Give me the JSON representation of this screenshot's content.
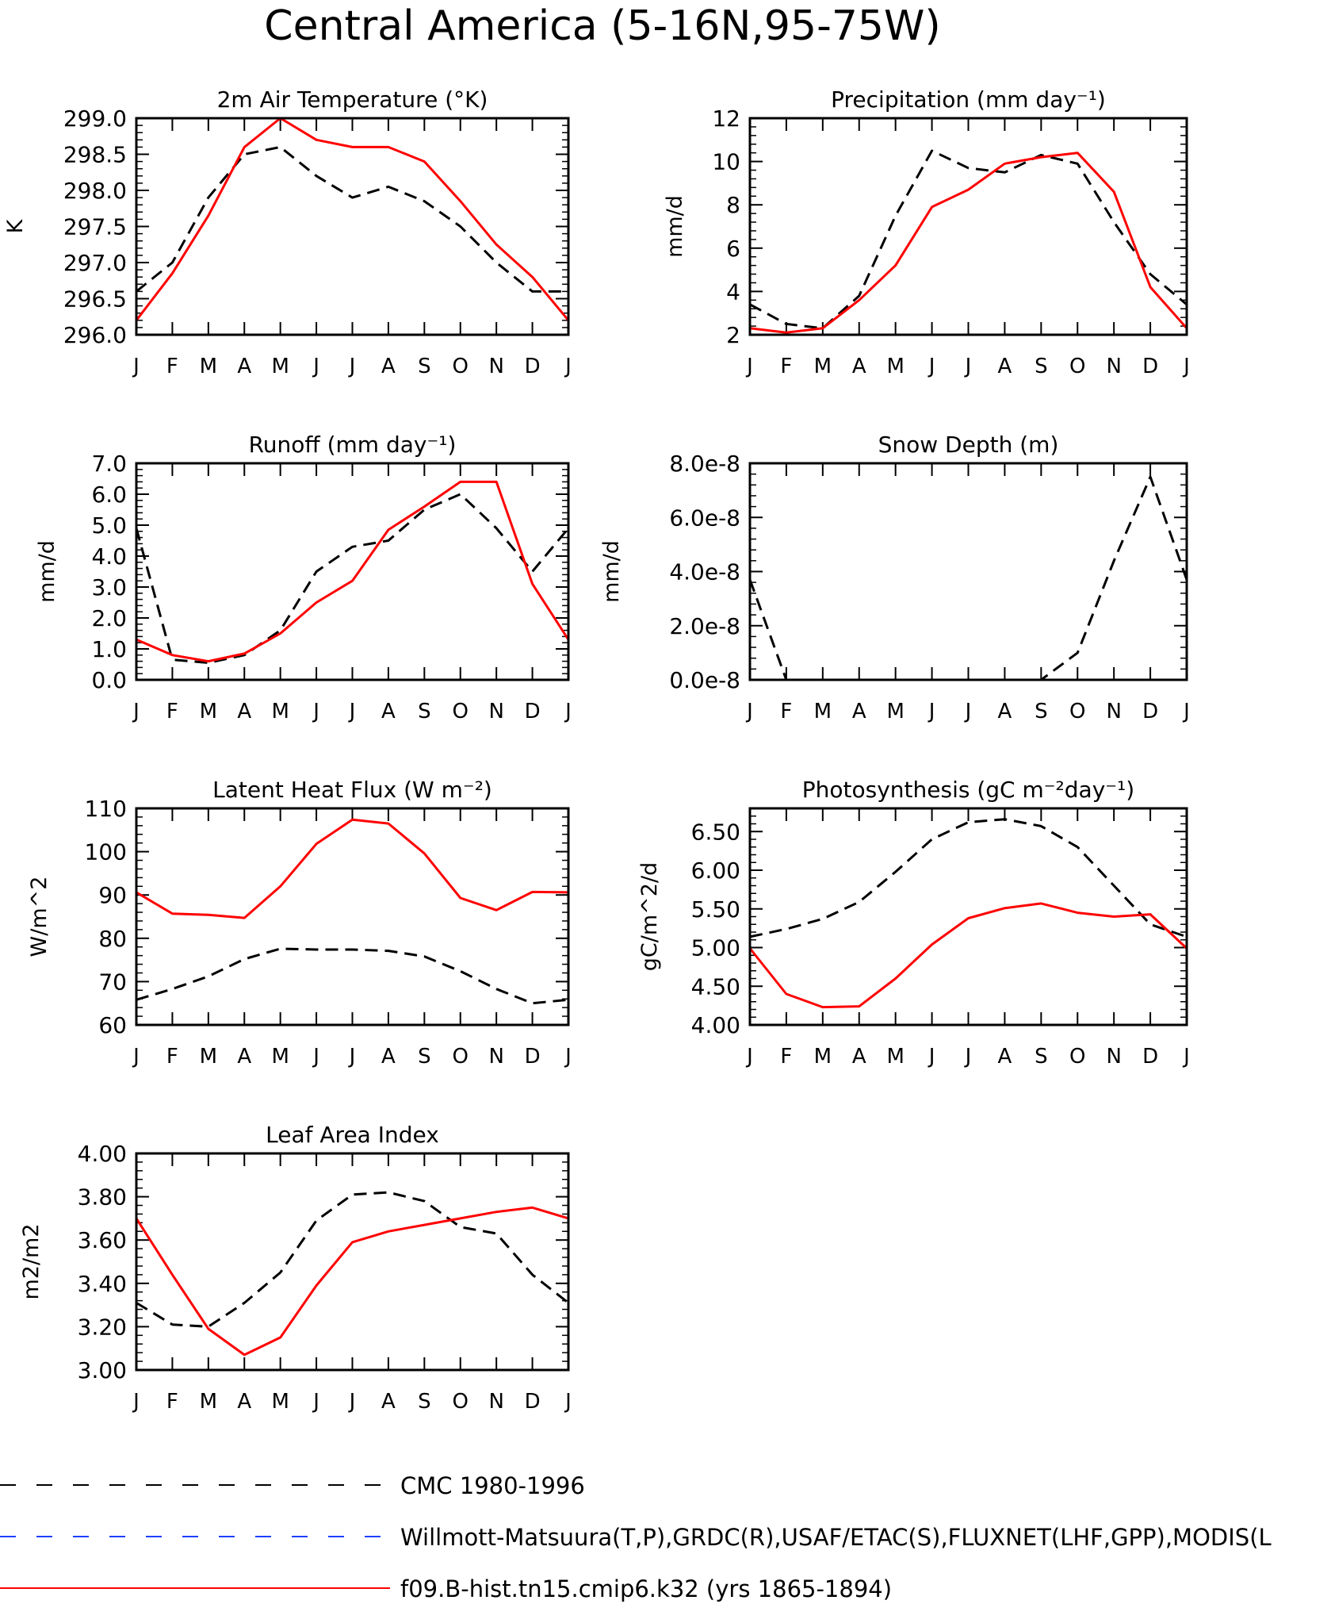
{
  "figure_title": "Central America (5-16N,95-75W)",
  "month_labels": [
    "J",
    "F",
    "M",
    "A",
    "M",
    "J",
    "J",
    "A",
    "S",
    "O",
    "N",
    "D",
    "J"
  ],
  "colors": {
    "obs1": "#000000",
    "obs2": "#1f3fff",
    "model": "#ff0000"
  },
  "legend": [
    {
      "label": "CMC 1980-1996",
      "style": "dashed",
      "color": "#000000"
    },
    {
      "label": "Willmott-Matsuura(T,P),GRDC(R),USAF/ETAC(S),FLUXNET(LHF,GPP),MODIS(L",
      "style": "dashed",
      "color": "#1f3fff"
    },
    {
      "label": "f09.B-hist.tn15.cmip6.k32 (yrs 1865-1894)",
      "style": "solid",
      "color": "#ff0000"
    }
  ],
  "chart_data": [
    {
      "type": "line",
      "title": "2m Air Temperature (°K)",
      "ylabel": "K",
      "ylim": [
        296.0,
        299.0
      ],
      "yticks": [
        296.0,
        296.5,
        297.0,
        297.5,
        298.0,
        298.5,
        299.0
      ],
      "ytick_labels": [
        "296.0",
        "296.5",
        "297.0",
        "297.5",
        "298.0",
        "298.5",
        "299.0"
      ],
      "series": [
        {
          "key": "obs1",
          "values": [
            296.6,
            297.0,
            297.9,
            298.5,
            298.6,
            298.2,
            297.9,
            298.05,
            297.85,
            297.5,
            297.0,
            296.6,
            296.6
          ]
        },
        {
          "key": "model",
          "values": [
            296.2,
            296.85,
            297.65,
            298.6,
            299.0,
            298.7,
            298.6,
            298.6,
            298.4,
            297.85,
            297.25,
            296.8,
            296.2
          ]
        }
      ]
    },
    {
      "type": "line",
      "title": "Precipitation (mm day⁻¹)",
      "ylabel": "mm/d",
      "ylim": [
        2,
        12
      ],
      "yticks": [
        2,
        4,
        6,
        8,
        10,
        12
      ],
      "ytick_labels": [
        "2",
        "4",
        "6",
        "8",
        "10",
        "12"
      ],
      "series": [
        {
          "key": "obs1",
          "values": [
            3.4,
            2.5,
            2.3,
            3.8,
            7.5,
            10.5,
            9.7,
            9.5,
            10.3,
            9.9,
            7.2,
            4.8,
            3.4
          ]
        },
        {
          "key": "model",
          "values": [
            2.3,
            2.1,
            2.3,
            3.6,
            5.2,
            7.9,
            8.7,
            9.9,
            10.2,
            10.4,
            8.6,
            4.2,
            2.3
          ]
        }
      ]
    },
    {
      "type": "line",
      "title": "Runoff (mm day⁻¹)",
      "ylabel": "mm/d",
      "ylim": [
        0,
        7
      ],
      "yticks": [
        0,
        1,
        2,
        3,
        4,
        5,
        6,
        7
      ],
      "ytick_labels": [
        "0.0",
        "1.0",
        "2.0",
        "3.0",
        "4.0",
        "5.0",
        "6.0",
        "7.0"
      ],
      "series": [
        {
          "key": "obs1",
          "values": [
            4.9,
            0.65,
            0.55,
            0.8,
            1.6,
            3.5,
            4.3,
            4.5,
            5.5,
            6.0,
            4.9,
            3.5,
            4.9
          ]
        },
        {
          "key": "model",
          "values": [
            1.3,
            0.8,
            0.6,
            0.85,
            1.5,
            2.5,
            3.2,
            4.85,
            5.6,
            6.4,
            6.4,
            3.1,
            1.3
          ]
        }
      ]
    },
    {
      "type": "line",
      "title": "Snow Depth (m)",
      "ylabel": "mm/d",
      "ylim": [
        0,
        8e-08
      ],
      "yticks": [
        0,
        2e-08,
        4e-08,
        6e-08,
        8e-08
      ],
      "ytick_labels": [
        "0.0e-8",
        "2.0e-8",
        "4.0e-8",
        "6.0e-8",
        "8.0e-8"
      ],
      "series": [
        {
          "key": "obs1",
          "values": [
            3.7e-08,
            0,
            0,
            0,
            0,
            0,
            0,
            0,
            0,
            1e-08,
            4.4e-08,
            7.5e-08,
            3.7e-08
          ]
        },
        {
          "key": "model",
          "values": [
            0,
            0,
            0,
            0,
            0,
            0,
            0,
            0,
            0,
            0,
            0,
            0,
            0
          ]
        }
      ]
    },
    {
      "type": "line",
      "title": "Latent Heat Flux (W m⁻²)",
      "ylabel": "W/m^2",
      "ylim": [
        60,
        110
      ],
      "yticks": [
        60,
        70,
        80,
        90,
        100,
        110
      ],
      "ytick_labels": [
        "60",
        "70",
        "80",
        "90",
        "100",
        "110"
      ],
      "series": [
        {
          "key": "obs1",
          "values": [
            65.8,
            68.3,
            71.2,
            75.2,
            77.6,
            77.4,
            77.4,
            77.1,
            75.8,
            72.4,
            68.3,
            65.0,
            65.8
          ]
        },
        {
          "key": "model",
          "values": [
            90.6,
            85.7,
            85.4,
            84.7,
            92.0,
            101.8,
            107.4,
            106.5,
            99.6,
            89.3,
            86.5,
            90.7,
            90.6
          ]
        }
      ]
    },
    {
      "type": "line",
      "title": "Photosynthesis (gC m⁻²day⁻¹)",
      "ylabel": "gC/m^2/d",
      "ylim": [
        4.0,
        6.8
      ],
      "yticks": [
        4.0,
        4.5,
        5.0,
        5.5,
        6.0,
        6.5
      ],
      "ytick_labels": [
        "4.00",
        "4.50",
        "5.00",
        "5.50",
        "6.00",
        "6.50"
      ],
      "series": [
        {
          "key": "obs1",
          "values": [
            5.14,
            5.24,
            5.37,
            5.59,
            5.98,
            6.4,
            6.62,
            6.66,
            6.57,
            6.3,
            5.8,
            5.3,
            5.14
          ]
        },
        {
          "key": "model",
          "values": [
            4.99,
            4.4,
            4.23,
            4.24,
            4.6,
            5.04,
            5.38,
            5.51,
            5.57,
            5.45,
            5.4,
            5.43,
            4.99
          ]
        }
      ]
    },
    {
      "type": "line",
      "title": "Leaf Area Index",
      "ylabel": "m2/m2",
      "ylim": [
        3.0,
        4.0
      ],
      "yticks": [
        3.0,
        3.2,
        3.4,
        3.6,
        3.8,
        4.0
      ],
      "ytick_labels": [
        "3.00",
        "3.20",
        "3.40",
        "3.60",
        "3.80",
        "4.00"
      ],
      "series": [
        {
          "key": "obs1",
          "values": [
            3.31,
            3.21,
            3.2,
            3.31,
            3.45,
            3.69,
            3.81,
            3.82,
            3.78,
            3.66,
            3.63,
            3.44,
            3.31
          ]
        },
        {
          "key": "model",
          "values": [
            3.7,
            3.44,
            3.19,
            3.07,
            3.15,
            3.39,
            3.59,
            3.64,
            3.67,
            3.7,
            3.73,
            3.75,
            3.7
          ]
        }
      ]
    }
  ]
}
